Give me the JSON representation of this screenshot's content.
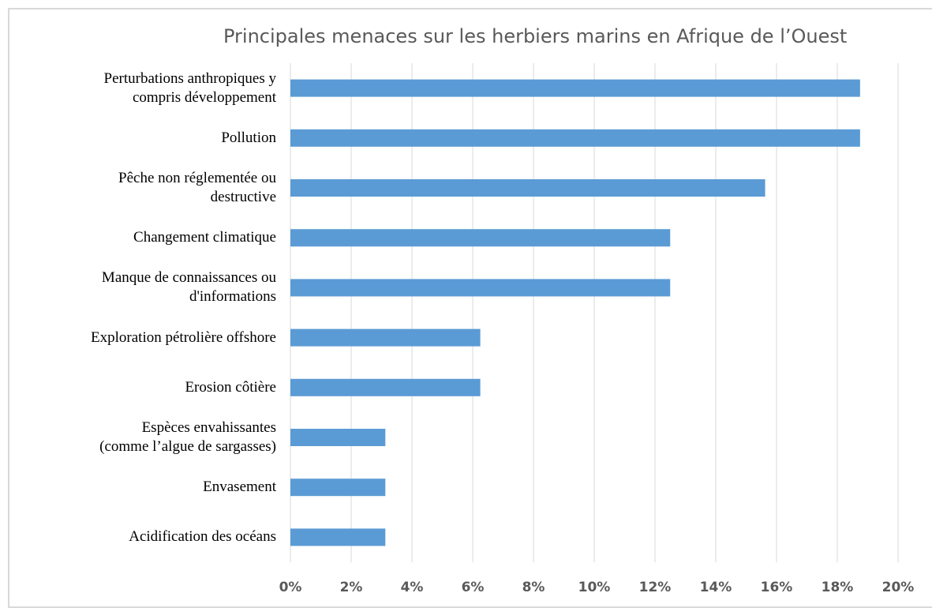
{
  "chart_data": {
    "type": "barh",
    "title": "Principales menaces sur les herbiers marins en Afrique de l’Ouest",
    "categories": [
      "Perturbations anthropiques y\ncompris développement",
      "Pollution",
      "Pêche non réglementée  ou\ndestructive",
      "Changement  climatique",
      "Manque de connaissances ou\nd'informations",
      "Exploration  pétrolière  offshore",
      "Erosion côtière",
      "Espèces envahissantes\n(comme l’algue de sargasses)",
      "Envasement",
      "Acidification  des océans"
    ],
    "values": [
      18.75,
      18.75,
      15.625,
      12.5,
      12.5,
      6.25,
      6.25,
      3.125,
      3.125,
      3.125
    ],
    "color": "#5b9bd5",
    "xlim": [
      0,
      20
    ],
    "xticks": [
      {
        "value": 0,
        "label": "0%"
      },
      {
        "value": 2,
        "label": "2%"
      },
      {
        "value": 4,
        "label": "4%"
      },
      {
        "value": 6,
        "label": "6%"
      },
      {
        "value": 8,
        "label": "8%"
      },
      {
        "value": 10,
        "label": "10%"
      },
      {
        "value": 12,
        "label": "12%"
      },
      {
        "value": 14,
        "label": "14%"
      },
      {
        "value": 16,
        "label": "16%"
      },
      {
        "value": 18,
        "label": "18%"
      },
      {
        "value": 20,
        "label": "20%"
      }
    ],
    "grid": true
  }
}
